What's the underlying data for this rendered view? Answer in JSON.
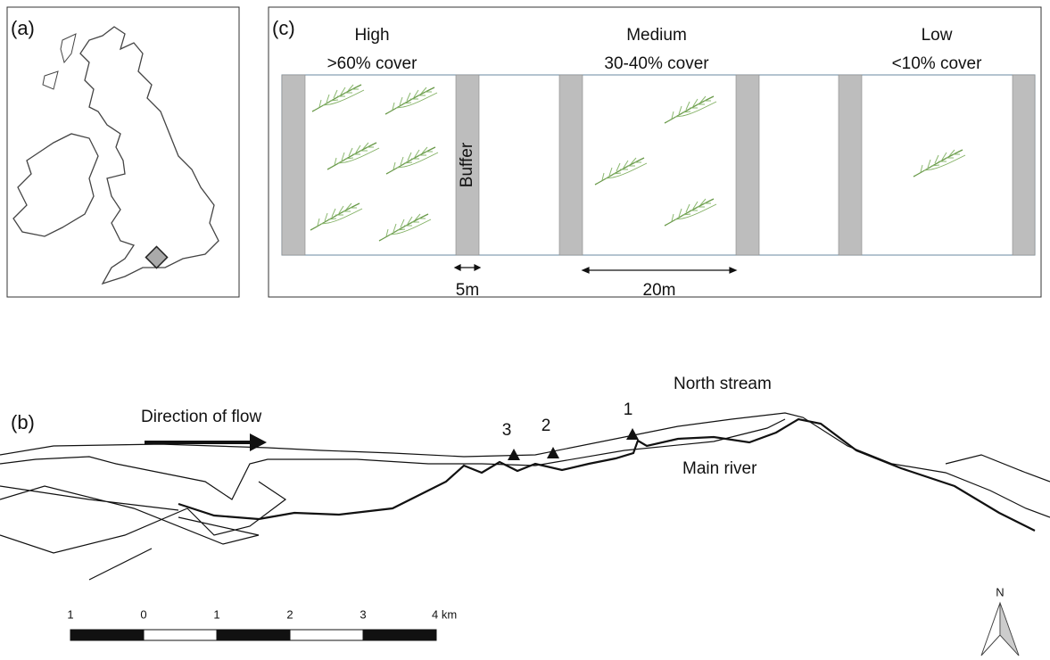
{
  "panel_a": {
    "label": "(a)"
  },
  "panel_c": {
    "label": "(c)",
    "plots": [
      {
        "name": "High",
        "cover": ">60% cover"
      },
      {
        "name": "Medium",
        "cover": "30-40% cover"
      },
      {
        "name": "Low",
        "cover": "<10% cover"
      }
    ],
    "buffer_label": "Buffer",
    "buffer_width": "5m",
    "plot_length": "20m"
  },
  "panel_b": {
    "label": "(b)",
    "flow_label": "Direction of flow",
    "north_stream": "North stream",
    "main_river": "Main river",
    "sites": [
      "3",
      "2",
      "1"
    ],
    "scale_labels": [
      "1",
      "0",
      "1",
      "2",
      "3",
      "4 km"
    ],
    "north": "N"
  }
}
